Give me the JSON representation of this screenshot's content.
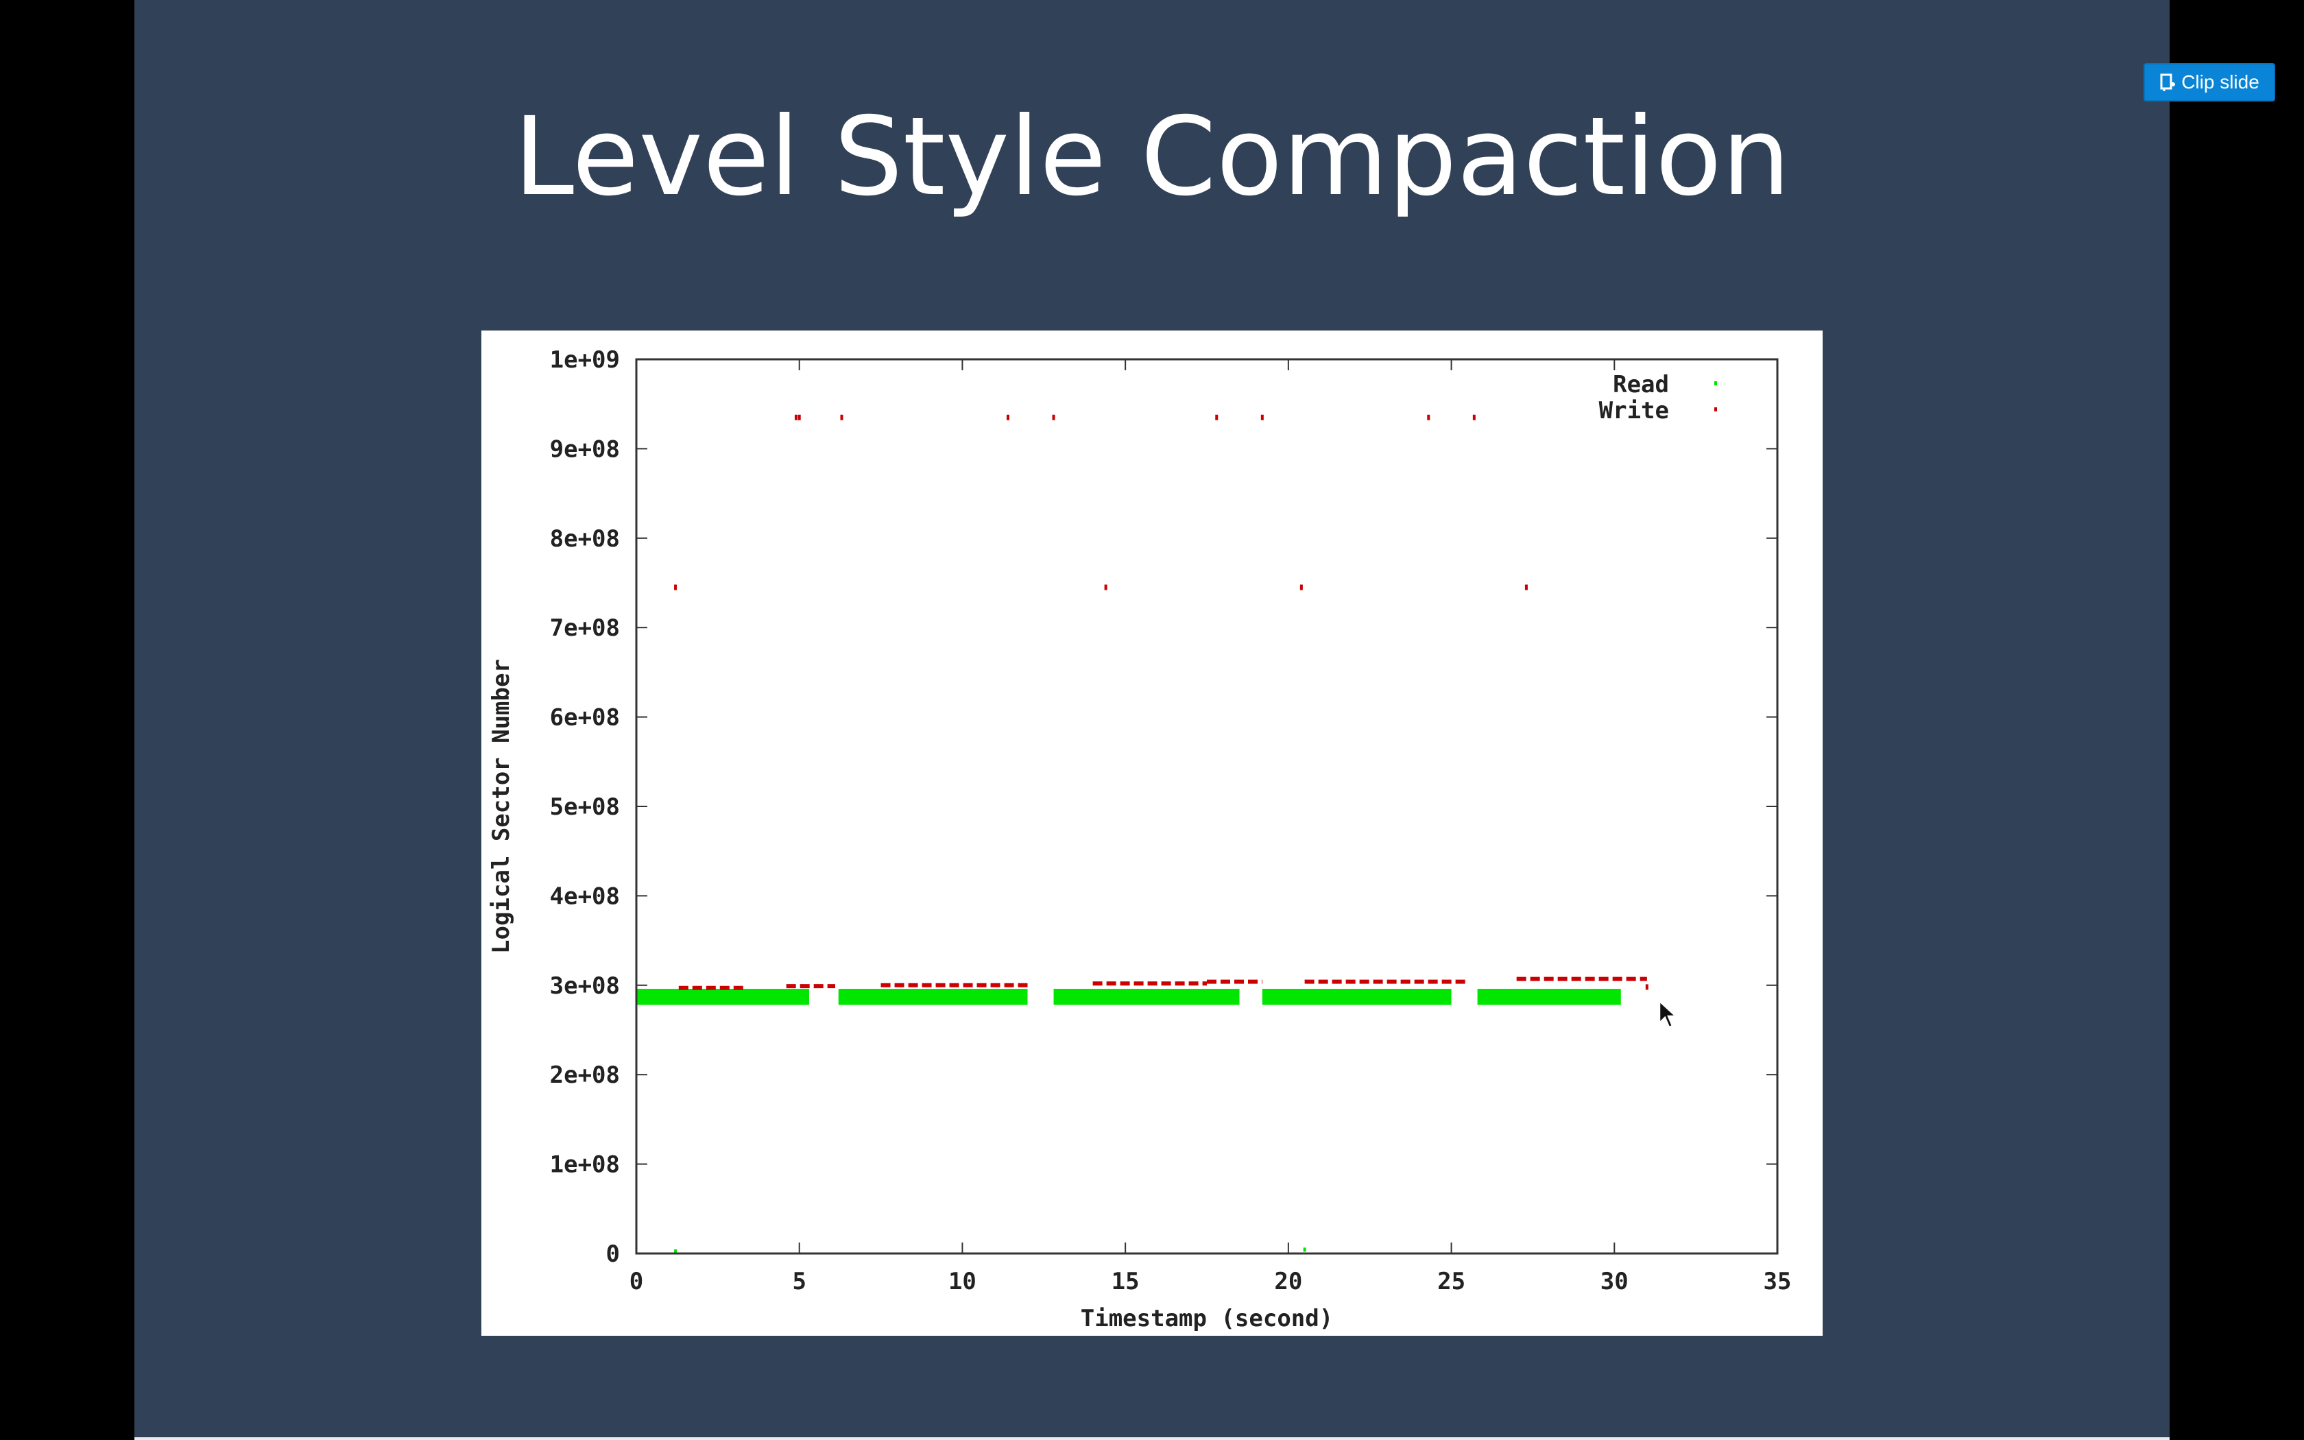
{
  "slide": {
    "title": "Level Style Compaction",
    "background": "#314157"
  },
  "toolbar": {
    "clip_label": "Clip slide",
    "clip_icon": "clip-icon",
    "accent": "#0a84d6"
  },
  "chart_data": {
    "type": "scatter",
    "title": "",
    "xlabel": "Timestamp (second)",
    "ylabel": "Logical Sector Number",
    "xlim": [
      0,
      35
    ],
    "ylim": [
      0,
      1000000000
    ],
    "x_ticks": [
      "0",
      "5",
      "10",
      "15",
      "20",
      "25",
      "30",
      "35"
    ],
    "x_tick_values": [
      0,
      5,
      10,
      15,
      20,
      25,
      30,
      35
    ],
    "y_ticks": [
      "0",
      "1e+08",
      "2e+08",
      "3e+08",
      "4e+08",
      "5e+08",
      "6e+08",
      "7e+08",
      "8e+08",
      "9e+08",
      "1e+09"
    ],
    "y_tick_values": [
      0,
      100000000,
      200000000,
      300000000,
      400000000,
      500000000,
      600000000,
      700000000,
      800000000,
      900000000,
      1000000000
    ],
    "grid": false,
    "legend_position": "top-right",
    "series": [
      {
        "name": "Read",
        "color": "#00e600",
        "marker": "dense-band",
        "segments": [
          {
            "x_start": 0.0,
            "x_end": 5.3,
            "y_low": 278000000,
            "y_high": 296000000
          },
          {
            "x_start": 6.2,
            "x_end": 12.0,
            "y_low": 278000000,
            "y_high": 296000000
          },
          {
            "x_start": 12.8,
            "x_end": 18.5,
            "y_low": 278000000,
            "y_high": 296000000
          },
          {
            "x_start": 19.2,
            "x_end": 25.0,
            "y_low": 278000000,
            "y_high": 296000000
          },
          {
            "x_start": 25.8,
            "x_end": 30.2,
            "y_low": 278000000,
            "y_high": 296000000
          }
        ],
        "points": [
          {
            "x": 1.2,
            "y": 0
          },
          {
            "x": 20.5,
            "y": 2000000
          }
        ]
      },
      {
        "name": "Write",
        "color": "#cc0000",
        "marker": "dot",
        "segments": [
          {
            "x_start": 1.3,
            "x_end": 3.3,
            "y": 297000000
          },
          {
            "x_start": 4.6,
            "x_end": 6.1,
            "y": 299000000
          },
          {
            "x_start": 7.5,
            "x_end": 12.0,
            "y": 300000000
          },
          {
            "x_start": 14.0,
            "x_end": 17.5,
            "y": 302000000
          },
          {
            "x_start": 17.5,
            "x_end": 19.2,
            "y": 304000000
          },
          {
            "x_start": 20.5,
            "x_end": 25.5,
            "y": 304000000
          },
          {
            "x_start": 27.0,
            "x_end": 31.0,
            "y": 307000000
          }
        ],
        "points": [
          {
            "x": 4.9,
            "y": 935000000
          },
          {
            "x": 5.0,
            "y": 935000000
          },
          {
            "x": 6.3,
            "y": 935000000
          },
          {
            "x": 11.4,
            "y": 935000000
          },
          {
            "x": 12.8,
            "y": 935000000
          },
          {
            "x": 17.8,
            "y": 935000000
          },
          {
            "x": 19.2,
            "y": 935000000
          },
          {
            "x": 24.3,
            "y": 935000000
          },
          {
            "x": 25.7,
            "y": 935000000
          },
          {
            "x": 1.2,
            "y": 745000000
          },
          {
            "x": 14.4,
            "y": 745000000
          },
          {
            "x": 20.4,
            "y": 745000000
          },
          {
            "x": 27.3,
            "y": 745000000
          },
          {
            "x": 31.0,
            "y": 298000000
          }
        ]
      }
    ]
  }
}
